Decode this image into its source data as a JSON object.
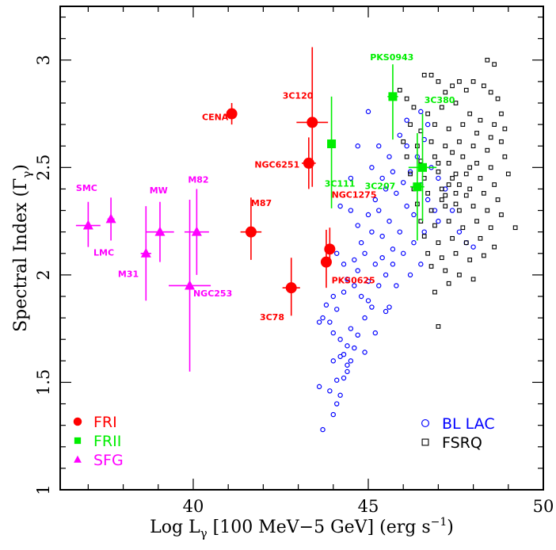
{
  "chart_data": {
    "type": "scatter",
    "xlabel": "Log Lγ [100 MeV−5 GeV] (erg s⁻¹)",
    "xlabel_parts": {
      "pre": "Log L",
      "sub": "γ",
      "mid": " [100 MeV−5 GeV] (erg s",
      "sup": "−1",
      "post": ")"
    },
    "ylabel_parts": {
      "pre": "Spectral Index (Γ",
      "sub": "γ",
      "post": ")"
    },
    "xlim": [
      36.2,
      50
    ],
    "ylim": [
      1,
      3.25
    ],
    "xticks": [
      {
        "v": 40,
        "label": "40"
      },
      {
        "v": 45,
        "label": "45"
      },
      {
        "v": 50,
        "label": "50"
      }
    ],
    "yticks": [
      {
        "v": 1,
        "label": "1"
      },
      {
        "v": 1.5,
        "label": "1.5"
      },
      {
        "v": 2,
        "label": "2"
      },
      {
        "v": 2.5,
        "label": "2.5"
      },
      {
        "v": 3,
        "label": "3"
      }
    ],
    "legend_left": [
      {
        "label": "FRI",
        "color": "#ff0000",
        "marker": "circle"
      },
      {
        "label": "FRII",
        "color": "#00ee00",
        "marker": "square"
      },
      {
        "label": "SFG",
        "color": "#ff00ff",
        "marker": "triangle"
      }
    ],
    "legend_right": [
      {
        "label": "BL LAC",
        "color": "#0000ff",
        "marker": "open-circle"
      },
      {
        "label": "FSRQ",
        "color": "#000000",
        "marker": "open-square"
      }
    ],
    "colors": {
      "FRI": "#ff0000",
      "FRII": "#00ee00",
      "SFG": "#ff00ff",
      "BLLAC": "#0000ff",
      "FSRQ": "#000000"
    },
    "series": [
      {
        "name": "FRI",
        "marker": "circle",
        "points": [
          {
            "x": 41.1,
            "y": 2.75,
            "xerr": 0.1,
            "ylo": 0.05,
            "yhi": 0.05
          },
          {
            "x": 43.4,
            "y": 2.71,
            "xerr": 0.45,
            "ylo": 0.3,
            "yhi": 0.35
          },
          {
            "x": 43.3,
            "y": 2.52,
            "xerr": 0.2,
            "ylo": 0.12,
            "yhi": 0.12
          },
          {
            "x": 41.65,
            "y": 2.2,
            "xerr": 0.3,
            "ylo": 0.13,
            "yhi": 0.16
          },
          {
            "x": 43.9,
            "y": 2.12,
            "xerr": 0.0,
            "ylo": 0.05,
            "yhi": 0.1
          },
          {
            "x": 43.8,
            "y": 2.06,
            "xerr": 0.15,
            "ylo": 0.12,
            "yhi": 0.15
          },
          {
            "x": 42.8,
            "y": 1.94,
            "xerr": 0.25,
            "ylo": 0.13,
            "yhi": 0.14
          }
        ]
      },
      {
        "name": "FRII",
        "marker": "square",
        "points": [
          {
            "x": 45.7,
            "y": 2.83,
            "xerr": 0.15,
            "ylo": 0.2,
            "yhi": 0.15
          },
          {
            "x": 43.95,
            "y": 2.61,
            "xerr": 0.1,
            "ylo": 0.3,
            "yhi": 0.22
          },
          {
            "x": 46.55,
            "y": 2.5,
            "xerr": 0.4,
            "ylo": 0.25,
            "yhi": 0.25
          },
          {
            "x": 46.4,
            "y": 2.41,
            "xerr": 0.2,
            "ylo": 0.25,
            "yhi": 0.25
          }
        ]
      },
      {
        "name": "SFG",
        "marker": "triangle",
        "points": [
          {
            "x": 37.0,
            "y": 2.23,
            "xerr": 0.35,
            "ylo": 0.1,
            "yhi": 0.11
          },
          {
            "x": 37.65,
            "y": 2.26,
            "xerr": 0.1,
            "ylo": 0.1,
            "yhi": 0.1
          },
          {
            "x": 38.65,
            "y": 2.1,
            "xerr": 0.15,
            "ylo": 0.22,
            "yhi": 0.22
          },
          {
            "x": 39.05,
            "y": 2.2,
            "xerr": 0.4,
            "ylo": 0.14,
            "yhi": 0.14
          },
          {
            "x": 40.1,
            "y": 2.2,
            "xerr": 0.35,
            "ylo": 0.2,
            "yhi": 0.2
          },
          {
            "x": 39.9,
            "y": 1.95,
            "xerr": 0.6,
            "ylo": 0.4,
            "yhi": 0.4
          }
        ]
      },
      {
        "name": "BL LAC",
        "marker": "open-circle",
        "points": [
          [
            43.7,
            1.28
          ],
          [
            43.6,
            1.48
          ],
          [
            43.9,
            1.46
          ],
          [
            44.0,
            1.35
          ],
          [
            44.1,
            1.4
          ],
          [
            44.2,
            1.44
          ],
          [
            44.1,
            1.51
          ],
          [
            44.3,
            1.52
          ],
          [
            44.4,
            1.58
          ],
          [
            44.3,
            1.63
          ],
          [
            44.5,
            1.6
          ],
          [
            44.4,
            1.67
          ],
          [
            44.6,
            1.66
          ],
          [
            44.2,
            1.7
          ],
          [
            44.0,
            1.73
          ],
          [
            43.9,
            1.78
          ],
          [
            43.7,
            1.8
          ],
          [
            43.6,
            1.78
          ],
          [
            44.1,
            1.84
          ],
          [
            44.5,
            1.75
          ],
          [
            44.7,
            1.72
          ],
          [
            44.9,
            1.8
          ],
          [
            45.1,
            1.85
          ],
          [
            44.8,
            1.9
          ],
          [
            44.6,
            1.95
          ],
          [
            44.3,
            1.92
          ],
          [
            44.0,
            1.9
          ],
          [
            43.8,
            1.86
          ],
          [
            44.4,
            1.98
          ],
          [
            44.7,
            2.02
          ],
          [
            45.0,
            1.97
          ],
          [
            45.3,
            1.95
          ],
          [
            45.5,
            2.0
          ],
          [
            45.2,
            2.05
          ],
          [
            44.9,
            2.1
          ],
          [
            44.6,
            2.07
          ],
          [
            44.3,
            2.05
          ],
          [
            44.1,
            2.1
          ],
          [
            44.8,
            2.15
          ],
          [
            45.1,
            2.2
          ],
          [
            45.4,
            2.18
          ],
          [
            45.7,
            2.12
          ],
          [
            45.9,
            2.2
          ],
          [
            45.6,
            2.25
          ],
          [
            45.3,
            2.3
          ],
          [
            45.0,
            2.28
          ],
          [
            44.7,
            2.23
          ],
          [
            44.5,
            2.3
          ],
          [
            45.2,
            2.35
          ],
          [
            45.5,
            2.4
          ],
          [
            45.8,
            2.38
          ],
          [
            46.1,
            2.32
          ],
          [
            46.3,
            2.28
          ],
          [
            46.0,
            2.43
          ],
          [
            45.7,
            2.48
          ],
          [
            45.4,
            2.45
          ],
          [
            45.1,
            2.5
          ],
          [
            45.6,
            2.55
          ],
          [
            46.2,
            2.48
          ],
          [
            46.5,
            2.42
          ],
          [
            46.7,
            2.35
          ],
          [
            46.4,
            2.55
          ],
          [
            46.1,
            2.6
          ],
          [
            45.9,
            2.65
          ],
          [
            46.6,
            2.63
          ],
          [
            46.8,
            2.5
          ],
          [
            47.0,
            2.45
          ],
          [
            47.2,
            2.4
          ],
          [
            46.9,
            2.3
          ],
          [
            46.6,
            2.2
          ],
          [
            46.3,
            2.15
          ],
          [
            46.0,
            2.1
          ],
          [
            45.7,
            2.05
          ],
          [
            45.4,
            2.08
          ],
          [
            45.0,
            1.88
          ],
          [
            45.6,
            1.85
          ],
          [
            46.2,
            2.0
          ],
          [
            46.5,
            2.05
          ],
          [
            47.0,
            2.25
          ],
          [
            47.4,
            2.3
          ],
          [
            47.6,
            2.2
          ],
          [
            47.8,
            2.15
          ],
          [
            48.0,
            2.13
          ],
          [
            45.0,
            2.76
          ],
          [
            46.5,
            2.76
          ],
          [
            45.3,
            2.6
          ],
          [
            44.7,
            2.6
          ],
          [
            44.5,
            2.45
          ],
          [
            44.2,
            2.32
          ],
          [
            45.8,
            1.95
          ],
          [
            46.1,
            2.72
          ],
          [
            46.7,
            2.7
          ],
          [
            44.4,
            1.55
          ],
          [
            44.2,
            1.62
          ],
          [
            44.9,
            1.64
          ],
          [
            45.5,
            1.83
          ],
          [
            45.2,
            1.73
          ],
          [
            44.0,
            1.6
          ]
        ]
      },
      {
        "name": "FSRQ",
        "marker": "open-square",
        "points": [
          [
            45.9,
            2.86
          ],
          [
            46.1,
            2.82
          ],
          [
            46.6,
            2.93
          ],
          [
            46.8,
            2.93
          ],
          [
            47.0,
            2.9
          ],
          [
            47.2,
            2.85
          ],
          [
            47.4,
            2.88
          ],
          [
            47.6,
            2.9
          ],
          [
            47.8,
            2.86
          ],
          [
            48.0,
            2.9
          ],
          [
            48.3,
            2.88
          ],
          [
            48.5,
            2.85
          ],
          [
            48.7,
            2.82
          ],
          [
            48.4,
            3.0
          ],
          [
            48.6,
            2.98
          ],
          [
            46.3,
            2.78
          ],
          [
            46.7,
            2.75
          ],
          [
            47.1,
            2.78
          ],
          [
            47.5,
            2.8
          ],
          [
            47.9,
            2.75
          ],
          [
            48.2,
            2.72
          ],
          [
            48.6,
            2.7
          ],
          [
            48.8,
            2.75
          ],
          [
            46.2,
            2.7
          ],
          [
            46.5,
            2.67
          ],
          [
            46.9,
            2.7
          ],
          [
            47.3,
            2.68
          ],
          [
            47.7,
            2.7
          ],
          [
            48.1,
            2.66
          ],
          [
            48.5,
            2.64
          ],
          [
            48.9,
            2.68
          ],
          [
            46.0,
            2.62
          ],
          [
            46.4,
            2.6
          ],
          [
            46.8,
            2.62
          ],
          [
            47.2,
            2.6
          ],
          [
            47.6,
            2.62
          ],
          [
            48.0,
            2.6
          ],
          [
            48.4,
            2.58
          ],
          [
            48.8,
            2.62
          ],
          [
            46.1,
            2.55
          ],
          [
            46.5,
            2.53
          ],
          [
            46.9,
            2.55
          ],
          [
            47.3,
            2.52
          ],
          [
            47.7,
            2.55
          ],
          [
            48.1,
            2.52
          ],
          [
            48.5,
            2.5
          ],
          [
            48.9,
            2.55
          ],
          [
            46.2,
            2.47
          ],
          [
            46.6,
            2.45
          ],
          [
            47.0,
            2.48
          ],
          [
            47.4,
            2.45
          ],
          [
            47.8,
            2.47
          ],
          [
            48.2,
            2.45
          ],
          [
            48.6,
            2.42
          ],
          [
            49.0,
            2.47
          ],
          [
            46.3,
            2.4
          ],
          [
            46.7,
            2.38
          ],
          [
            47.1,
            2.4
          ],
          [
            47.5,
            2.38
          ],
          [
            47.9,
            2.4
          ],
          [
            48.3,
            2.38
          ],
          [
            48.7,
            2.35
          ],
          [
            46.4,
            2.33
          ],
          [
            46.8,
            2.3
          ],
          [
            47.2,
            2.32
          ],
          [
            47.6,
            2.3
          ],
          [
            48.0,
            2.32
          ],
          [
            48.4,
            2.3
          ],
          [
            48.8,
            2.28
          ],
          [
            46.5,
            2.25
          ],
          [
            46.9,
            2.23
          ],
          [
            47.3,
            2.25
          ],
          [
            47.7,
            2.22
          ],
          [
            48.1,
            2.25
          ],
          [
            48.5,
            2.22
          ],
          [
            49.2,
            2.22
          ],
          [
            46.6,
            2.18
          ],
          [
            47.0,
            2.15
          ],
          [
            47.4,
            2.17
          ],
          [
            47.8,
            2.15
          ],
          [
            48.2,
            2.17
          ],
          [
            48.6,
            2.13
          ],
          [
            46.7,
            2.1
          ],
          [
            47.1,
            2.08
          ],
          [
            47.5,
            2.1
          ],
          [
            47.9,
            2.07
          ],
          [
            48.3,
            2.09
          ],
          [
            47.2,
            2.02
          ],
          [
            46.8,
            2.04
          ],
          [
            47.6,
            2.0
          ],
          [
            48.0,
            1.98
          ],
          [
            46.9,
            1.92
          ],
          [
            47.3,
            1.96
          ],
          [
            47.0,
            1.76
          ],
          [
            47.1,
            2.35
          ],
          [
            47.3,
            2.42
          ],
          [
            47.5,
            2.47
          ],
          [
            47.8,
            2.37
          ],
          [
            47.0,
            2.52
          ],
          [
            47.4,
            2.57
          ],
          [
            47.2,
            2.37
          ],
          [
            47.6,
            2.42
          ],
          [
            47.9,
            2.5
          ],
          [
            47.5,
            2.33
          ]
        ]
      }
    ],
    "annotations": [
      {
        "text": "CENA",
        "color": "#ff0000",
        "x": 40.25,
        "y": 2.72
      },
      {
        "text": "3C120",
        "color": "#ff0000",
        "x": 42.55,
        "y": 2.82
      },
      {
        "text": "NGC6251",
        "color": "#ff0000",
        "x": 41.75,
        "y": 2.5
      },
      {
        "text": "M87",
        "color": "#ff0000",
        "x": 41.65,
        "y": 2.32
      },
      {
        "text": "NGC1275",
        "color": "#ff0000",
        "x": 43.95,
        "y": 2.36
      },
      {
        "text": "PKS0625",
        "color": "#ff0000",
        "x": 43.95,
        "y": 1.96
      },
      {
        "text": "3C78",
        "color": "#ff0000",
        "x": 41.9,
        "y": 1.79
      },
      {
        "text": "PKS0943",
        "color": "#00ee00",
        "x": 45.05,
        "y": 3.0
      },
      {
        "text": "3C380",
        "color": "#00ee00",
        "x": 46.6,
        "y": 2.8
      },
      {
        "text": "3C111",
        "color": "#00ee00",
        "x": 43.75,
        "y": 2.41
      },
      {
        "text": "3C207",
        "color": "#00ee00",
        "x": 44.9,
        "y": 2.4
      },
      {
        "text": "SMC",
        "color": "#ff00ff",
        "x": 36.65,
        "y": 2.39
      },
      {
        "text": "LMC",
        "color": "#ff00ff",
        "x": 37.15,
        "y": 2.09
      },
      {
        "text": "M31",
        "color": "#ff00ff",
        "x": 37.85,
        "y": 1.99
      },
      {
        "text": "MW",
        "color": "#ff00ff",
        "x": 38.75,
        "y": 2.38
      },
      {
        "text": "M82",
        "color": "#ff00ff",
        "x": 39.85,
        "y": 2.43
      },
      {
        "text": "NGC253",
        "color": "#ff00ff",
        "x": 40.0,
        "y": 1.9
      }
    ]
  }
}
